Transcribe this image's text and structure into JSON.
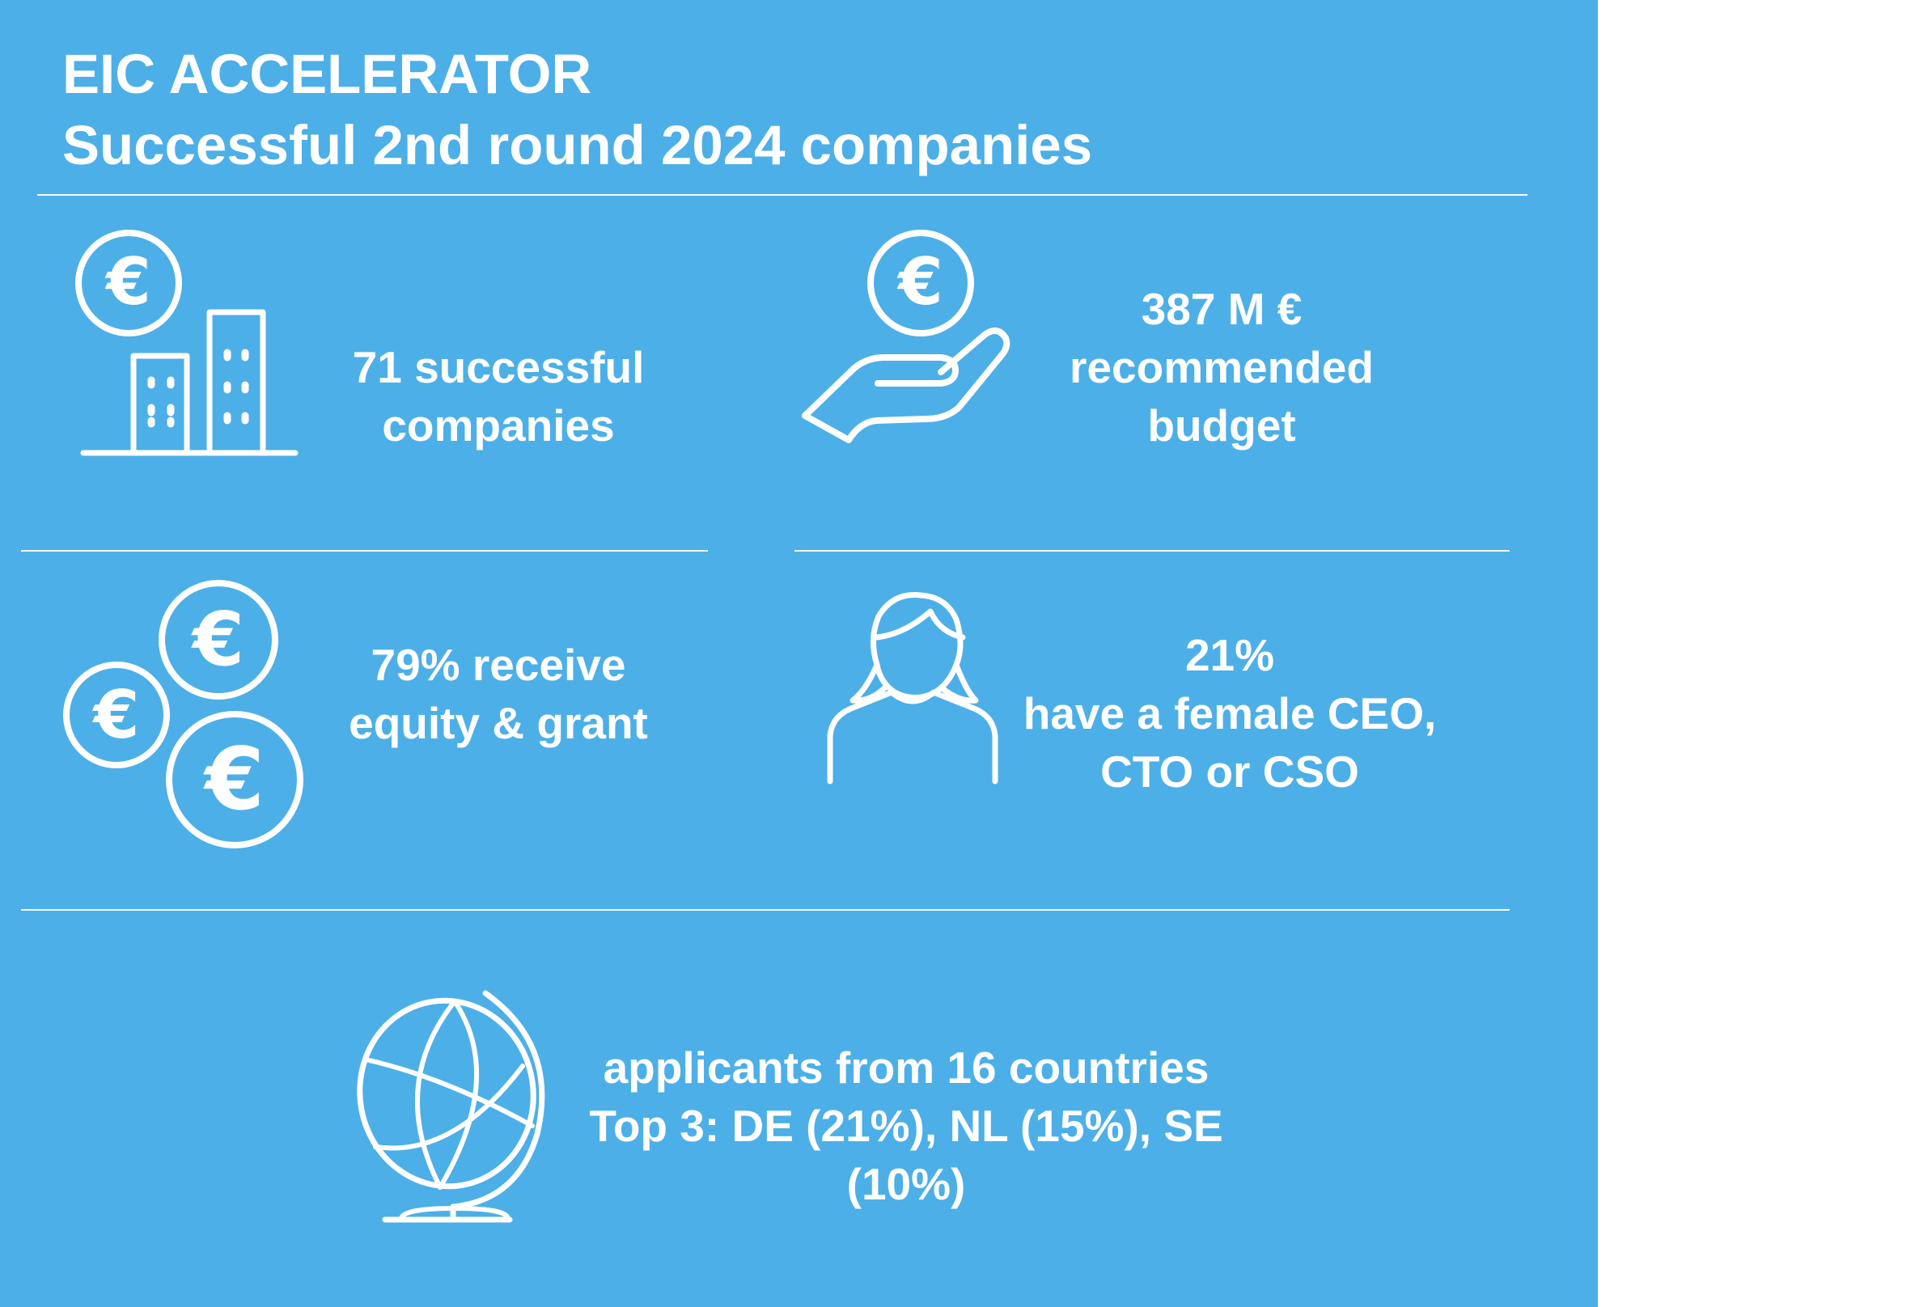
{
  "header": {
    "title_line1": "EIC ACCELERATOR",
    "title_line2": "Successful 2nd round 2024 companies"
  },
  "stats": {
    "companies": {
      "line1": "71 successful",
      "line2": "companies",
      "icon": "buildings-euro-icon"
    },
    "budget": {
      "line1": "387 M €",
      "line2": "recommended",
      "line3": "budget",
      "icon": "hand-euro-icon"
    },
    "equity": {
      "line1": "79% receive",
      "line2": "equity & grant",
      "icon": "euro-coins-icon"
    },
    "female": {
      "line1": "21%",
      "line2": "have a female CEO,",
      "line3": "CTO or CSO",
      "icon": "woman-person-icon"
    },
    "countries": {
      "line1": "applicants from 16 countries",
      "line2": "Top 3: DE (21%), NL (15%), SE",
      "line3": "(10%)",
      "icon": "globe-icon"
    }
  },
  "icon_glyphs": {
    "euro": "€"
  },
  "colors": {
    "background": "#4dafe7",
    "foreground": "#ffffff"
  }
}
